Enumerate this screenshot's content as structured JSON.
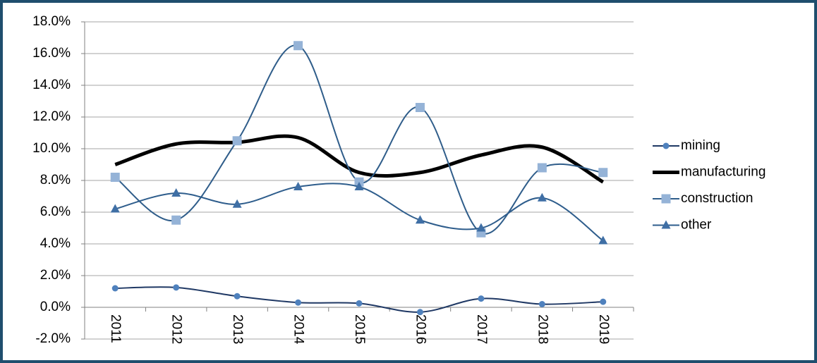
{
  "chart_data": {
    "type": "line",
    "categories": [
      "2011",
      "2012",
      "2013",
      "2014",
      "2015",
      "2016",
      "2017",
      "2018",
      "2019"
    ],
    "series": [
      {
        "name": "mining",
        "color": "#1f3864",
        "marker": "circle",
        "marker_color": "#4f81bd",
        "values": [
          1.2,
          1.25,
          0.7,
          0.3,
          0.25,
          -0.3,
          0.55,
          0.2,
          0.35
        ]
      },
      {
        "name": "manufacturing",
        "color": "#000000",
        "marker": "none",
        "values": [
          9.0,
          10.3,
          10.4,
          10.7,
          8.5,
          8.5,
          9.6,
          10.1,
          7.9
        ]
      },
      {
        "name": "construction",
        "color": "#2f5d8a",
        "marker": "square",
        "marker_color": "#95b3d7",
        "values": [
          8.2,
          5.5,
          10.5,
          16.5,
          7.9,
          12.6,
          4.7,
          8.8,
          8.5
        ]
      },
      {
        "name": "other",
        "color": "#2e5d8c",
        "marker": "triangle",
        "marker_color": "#3f6fa5",
        "values": [
          6.2,
          7.2,
          6.5,
          7.6,
          7.6,
          5.5,
          5.0,
          6.9,
          4.2
        ]
      }
    ],
    "ylim": [
      -2,
      18
    ],
    "yticks": [
      {
        "value": -2,
        "label": "-2.0%"
      },
      {
        "value": 0,
        "label": "0.0%"
      },
      {
        "value": 2,
        "label": "2.0%"
      },
      {
        "value": 4,
        "label": "4.0%"
      },
      {
        "value": 6,
        "label": "6.0%"
      },
      {
        "value": 8,
        "label": "8.0%"
      },
      {
        "value": 10,
        "label": "10.0%"
      },
      {
        "value": 12,
        "label": "12.0%"
      },
      {
        "value": 14,
        "label": "14.0%"
      },
      {
        "value": 16,
        "label": "16.0%"
      },
      {
        "value": 18,
        "label": "18.0%"
      }
    ],
    "grid": true,
    "smooth": true,
    "legend": "right"
  }
}
